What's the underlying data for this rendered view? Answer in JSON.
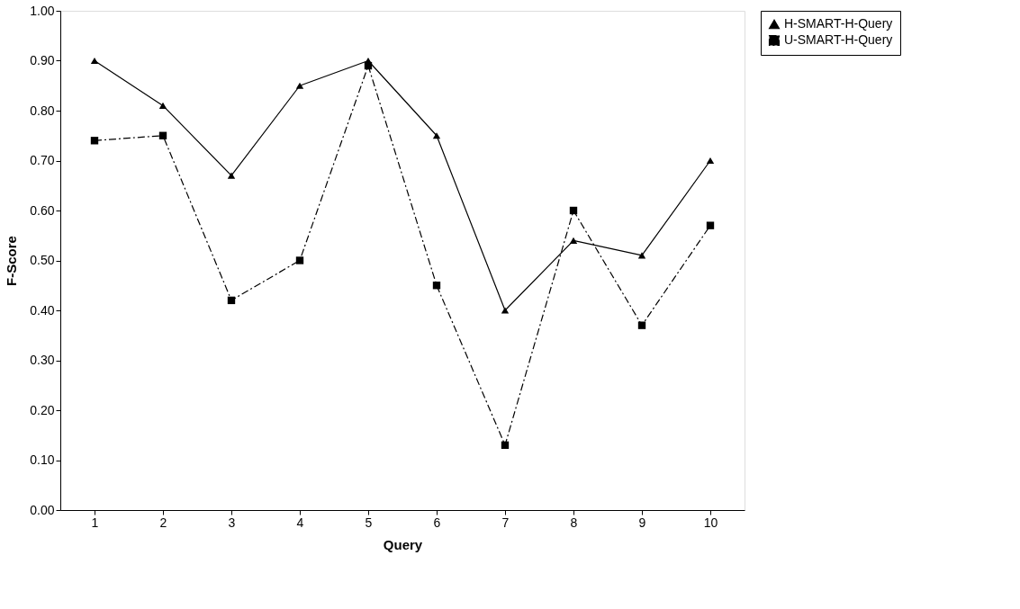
{
  "chart_data": {
    "type": "line",
    "xlabel": "Query",
    "ylabel": "F-Score",
    "categories": [
      "1",
      "2",
      "3",
      "4",
      "5",
      "6",
      "7",
      "8",
      "9",
      "10"
    ],
    "series": [
      {
        "name": "H-SMART-H-Query",
        "color": "#000000",
        "marker": "triangle",
        "line_style": "solid",
        "values": [
          0.9,
          0.81,
          0.67,
          0.85,
          0.9,
          0.75,
          0.4,
          0.54,
          0.51,
          0.7
        ]
      },
      {
        "name": "U-SMART-H-Query",
        "color": "#000000",
        "marker": "square",
        "line_style": "dashed",
        "values": [
          0.74,
          0.75,
          0.42,
          0.5,
          0.89,
          0.45,
          0.13,
          0.6,
          0.37,
          0.57
        ]
      }
    ],
    "ylim": [
      0,
      1
    ],
    "yticks": [
      {
        "value": 0,
        "label": "0.00"
      },
      {
        "value": 0.1,
        "label": "0.10"
      },
      {
        "value": 0.2,
        "label": "0.20"
      },
      {
        "value": 0.3,
        "label": "0.30"
      },
      {
        "value": 0.4,
        "label": "0.40"
      },
      {
        "value": 0.5,
        "label": "0.50"
      },
      {
        "value": 0.6,
        "label": "0.60"
      },
      {
        "value": 0.7,
        "label": "0.70"
      },
      {
        "value": 0.8,
        "label": "0.80"
      },
      {
        "value": 0.9,
        "label": "0.90"
      },
      {
        "value": 1,
        "label": "1.00"
      }
    ],
    "grid": false,
    "legend": "right"
  }
}
